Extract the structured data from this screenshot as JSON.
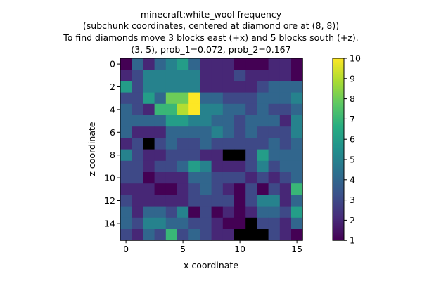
{
  "chart_data": {
    "type": "heatmap",
    "title": [
      "minecraft:white_wool frequency",
      "(subchunk coordinates, centered at diamond ore at (8, 8))",
      "To find diamonds move 3 blocks east (+x) and 5 blocks south (+z).",
      "(3, 5), prob_1=0.072, prob_2=0.167"
    ],
    "xlabel": "x coordinate",
    "ylabel": "z coordinate",
    "x_ticks": [
      0,
      5,
      10,
      15
    ],
    "y_ticks": [
      0,
      2,
      4,
      6,
      8,
      10,
      12,
      14
    ],
    "colorbar_ticks": [
      1,
      2,
      3,
      4,
      5,
      6,
      7,
      8,
      9,
      10
    ],
    "vmin": 1,
    "vmax": 10,
    "colormap": "viridis",
    "under_color": "#000000",
    "grid": [
      [
        1,
        4,
        2,
        4,
        5,
        6,
        4,
        2,
        2,
        2,
        1,
        1,
        1,
        2,
        2,
        1
      ],
      [
        2,
        3,
        5,
        5,
        5,
        5,
        5,
        2,
        2,
        2,
        3,
        2,
        2,
        2,
        2,
        1
      ],
      [
        6,
        3,
        5,
        5,
        5,
        5,
        5,
        2,
        2,
        2,
        2,
        2,
        3,
        4,
        4,
        4
      ],
      [
        3,
        3,
        6,
        4,
        8,
        8,
        10,
        4,
        4,
        3,
        3,
        3,
        4,
        4,
        4,
        5
      ],
      [
        4,
        3,
        2,
        7,
        7,
        9,
        10,
        5,
        5,
        4,
        4,
        3,
        4,
        3,
        3,
        4
      ],
      [
        4,
        4,
        4,
        4,
        6,
        6,
        5,
        5,
        4,
        4,
        3,
        4,
        4,
        4,
        2,
        5
      ],
      [
        4,
        2,
        2,
        2,
        4,
        4,
        4,
        4,
        5,
        4,
        3,
        4,
        3,
        3,
        3,
        5
      ],
      [
        2,
        3,
        0,
        3,
        4,
        3,
        3,
        4,
        3,
        3,
        3,
        3,
        3,
        4,
        3,
        4
      ],
      [
        5,
        3,
        2,
        2,
        3,
        3,
        3,
        2,
        2,
        0,
        0,
        3,
        6,
        4,
        4,
        4
      ],
      [
        3,
        3,
        2,
        3,
        3,
        4,
        6,
        5,
        2,
        2,
        2,
        3,
        5,
        3,
        4,
        4
      ],
      [
        3,
        3,
        1,
        2,
        2,
        2,
        4,
        4,
        3,
        3,
        3,
        2,
        3,
        2,
        3,
        4
      ],
      [
        2,
        2,
        2,
        1,
        1,
        2,
        3,
        4,
        3,
        2,
        1,
        3,
        1,
        3,
        2,
        7
      ],
      [
        3,
        2,
        2,
        2,
        2,
        2,
        3,
        3,
        3,
        3,
        1,
        3,
        5,
        5,
        2,
        4
      ],
      [
        4,
        2,
        4,
        4,
        3,
        5,
        1,
        3,
        1,
        2,
        1,
        2,
        4,
        4,
        3,
        6
      ],
      [
        4,
        3,
        5,
        5,
        4,
        4,
        3,
        3,
        2,
        1,
        1,
        0,
        3,
        3,
        2,
        4
      ],
      [
        3,
        2,
        4,
        3,
        7,
        3,
        4,
        3,
        2,
        2,
        0,
        0,
        0,
        3,
        2,
        1
      ]
    ]
  }
}
